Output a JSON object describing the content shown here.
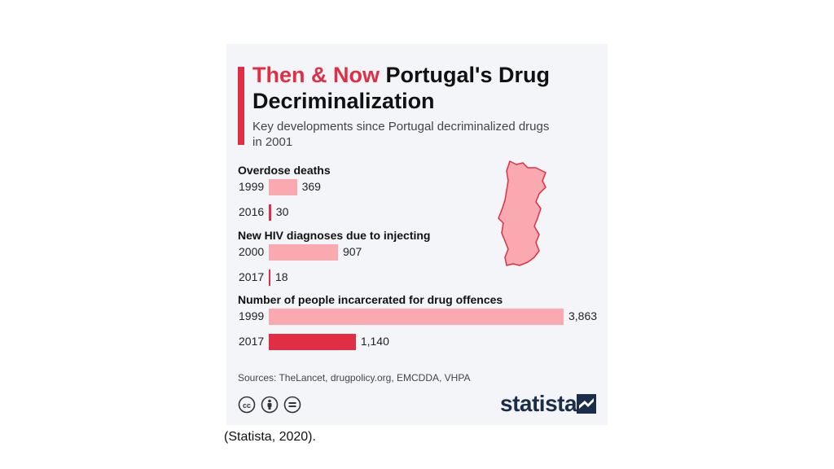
{
  "title": {
    "highlight": "Then & Now",
    "rest": "Portugal's Drug Decriminalization"
  },
  "subtitle": "Key developments since Portugal decriminalized drugs in 2001",
  "colors": {
    "accent": "#e02f44",
    "bar_then": "#fba9b0",
    "bar_now": "#e02f44",
    "card_bg": "#f3f5f8",
    "brand": "#1c2d4a"
  },
  "chart_data": {
    "type": "bar",
    "orientation": "horizontal",
    "sections": [
      {
        "label": "Overdose deaths",
        "rows": [
          {
            "year": "1999",
            "value": 369,
            "value_label": "369"
          },
          {
            "year": "2016",
            "value": 30,
            "value_label": "30"
          }
        ]
      },
      {
        "label": "New HIV diagnoses due to injecting",
        "rows": [
          {
            "year": "2000",
            "value": 907,
            "value_label": "907"
          },
          {
            "year": "2017",
            "value": 18,
            "value_label": "18"
          }
        ]
      },
      {
        "label": "Number of people incarcerated for drug offences",
        "rows": [
          {
            "year": "1999",
            "value": 3863,
            "value_label": "3,863"
          },
          {
            "year": "2017",
            "value": 1140,
            "value_label": "1,140"
          }
        ]
      }
    ]
  },
  "sources": "Sources: TheLancet, drugpolicy.org, EMCDDA, VHPA",
  "license_icons": [
    "creative-commons-icon",
    "attribution-icon",
    "no-derivatives-icon"
  ],
  "brand": "statista",
  "caption": "(Statista, 2020)."
}
